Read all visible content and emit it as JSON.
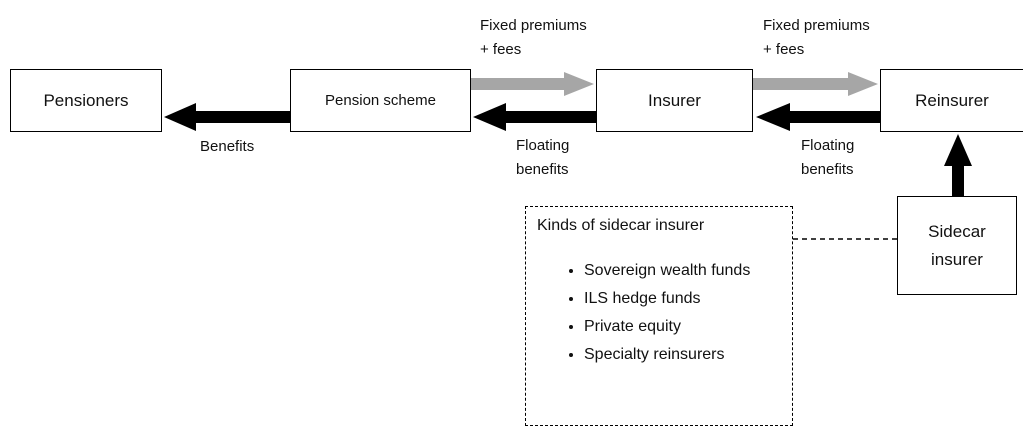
{
  "nodes": [
    {
      "label": "Pensioners"
    },
    {
      "label": "Pension scheme"
    },
    {
      "label": "Insurer"
    },
    {
      "label": "Reinsurer"
    },
    {
      "label": "Sidecar\ninsurer"
    }
  ],
  "edges": [
    {
      "label": [
        "Fixed premiums",
        "+ fees"
      ]
    },
    {
      "label": [
        "Fixed premiums",
        "+ fees"
      ]
    },
    {
      "label": [
        "Benefits"
      ]
    },
    {
      "label": [
        "Floating",
        "benefits"
      ]
    },
    {
      "label": [
        "Floating",
        "benefits"
      ]
    }
  ],
  "sidecar_kinds": {
    "title": "Kinds of sidecar insurer",
    "items": [
      "Sovereign wealth funds",
      "ILS hedge funds",
      "Private equity",
      "Specialty reinsurers"
    ]
  }
}
